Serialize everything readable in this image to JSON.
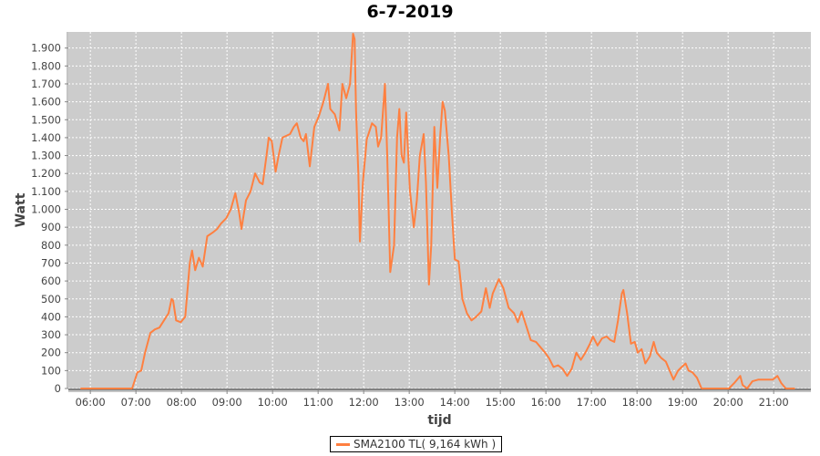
{
  "chart_data": {
    "type": "line",
    "title": "6-7-2019",
    "xlabel": "tijd",
    "ylabel": "Watt",
    "xlim": [
      "05:31",
      "21:49"
    ],
    "ylim": [
      0,
      1990
    ],
    "grid": true,
    "legend_placement": "bottom",
    "x_ticks": [
      "06:00",
      "07:00",
      "08:00",
      "09:00",
      "10:00",
      "11:00",
      "12:00",
      "13:00",
      "14:00",
      "15:00",
      "16:00",
      "17:00",
      "18:00",
      "19:00",
      "20:00",
      "21:00"
    ],
    "y_ticks": [
      0,
      100,
      200,
      300,
      400,
      500,
      600,
      700,
      800,
      900,
      1000,
      1100,
      1200,
      1300,
      1400,
      1500,
      1600,
      1700,
      1800,
      1900
    ],
    "y_tick_labels": [
      "0",
      "100",
      "200",
      "300",
      "400",
      "500",
      "600",
      "700",
      "800",
      "900",
      "1.000",
      "1.100",
      "1.200",
      "1.300",
      "1.400",
      "1.500",
      "1.600",
      "1.700",
      "1.800",
      "1.900"
    ],
    "series": [
      {
        "name": "SMA2100 TL( 9,164 kWh )",
        "color": "#ff8040",
        "x": [
          "05:47",
          "06:55",
          "07:02",
          "07:07",
          "07:12",
          "07:19",
          "07:25",
          "07:31",
          "07:37",
          "07:43",
          "07:47",
          "07:49",
          "07:53",
          "07:59",
          "08:05",
          "08:11",
          "08:14",
          "08:18",
          "08:23",
          "08:28",
          "08:34",
          "08:41",
          "08:47",
          "08:52",
          "08:59",
          "09:05",
          "09:11",
          "09:16",
          "09:19",
          "09:25",
          "09:31",
          "09:37",
          "09:43",
          "09:47",
          "09:52",
          "09:55",
          "09:59",
          "10:04",
          "10:08",
          "10:13",
          "10:23",
          "10:28",
          "10:32",
          "10:37",
          "10:41",
          "10:44",
          "10:49",
          "10:55",
          "11:01",
          "11:07",
          "11:13",
          "11:16",
          "11:22",
          "11:28",
          "11:32",
          "11:37",
          "11:42",
          "11:46",
          "11:48",
          "11:50",
          "11:53",
          "11:55",
          "11:59",
          "12:04",
          "12:11",
          "12:16",
          "12:19",
          "12:23",
          "12:28",
          "12:31",
          "12:35",
          "12:40",
          "12:44",
          "12:47",
          "12:50",
          "12:53",
          "12:56",
          "13:01",
          "13:06",
          "13:10",
          "13:14",
          "13:19",
          "13:22",
          "13:26",
          "13:29",
          "13:33",
          "13:37",
          "13:41",
          "13:44",
          "13:47",
          "13:52",
          "13:56",
          "14:00",
          "14:05",
          "14:10",
          "14:16",
          "14:22",
          "14:28",
          "14:35",
          "14:41",
          "14:46",
          "14:50",
          "14:58",
          "15:04",
          "15:11",
          "15:18",
          "15:23",
          "15:28",
          "15:34",
          "15:40",
          "15:47",
          "15:53",
          "15:59",
          "16:04",
          "16:10",
          "16:16",
          "16:22",
          "16:28",
          "16:34",
          "16:40",
          "16:46",
          "16:52",
          "16:58",
          "17:02",
          "17:08",
          "17:14",
          "17:20",
          "17:25",
          "17:30",
          "17:35",
          "17:40",
          "17:42",
          "17:47",
          "17:52",
          "17:57",
          "18:01",
          "18:06",
          "18:11",
          "18:17",
          "18:22",
          "18:26",
          "18:32",
          "18:38",
          "18:43",
          "18:48",
          "18:54",
          "18:59",
          "19:04",
          "19:08",
          "19:13",
          "19:19",
          "19:25",
          "20:01",
          "20:08",
          "20:16",
          "20:19",
          "20:25",
          "20:32",
          "20:40",
          "20:49",
          "20:59",
          "21:05",
          "21:10",
          "21:16",
          "21:28"
        ],
        "y": [
          0,
          0,
          90,
          100,
          200,
          310,
          330,
          340,
          380,
          420,
          500,
          490,
          380,
          370,
          400,
          700,
          770,
          660,
          730,
          680,
          850,
          870,
          890,
          920,
          950,
          1000,
          1090,
          980,
          890,
          1050,
          1100,
          1200,
          1150,
          1140,
          1300,
          1400,
          1380,
          1210,
          1300,
          1400,
          1420,
          1460,
          1480,
          1400,
          1380,
          1420,
          1240,
          1460,
          1520,
          1600,
          1700,
          1560,
          1530,
          1440,
          1700,
          1620,
          1700,
          1980,
          1950,
          1550,
          1200,
          820,
          1150,
          1390,
          1480,
          1460,
          1350,
          1400,
          1700,
          1300,
          650,
          800,
          1400,
          1560,
          1300,
          1260,
          1540,
          1100,
          900,
          1050,
          1300,
          1420,
          1150,
          580,
          800,
          1460,
          1120,
          1420,
          1600,
          1550,
          1300,
          1000,
          720,
          710,
          500,
          420,
          380,
          400,
          430,
          560,
          450,
          530,
          610,
          560,
          450,
          420,
          370,
          430,
          350,
          270,
          260,
          230,
          200,
          170,
          120,
          130,
          110,
          70,
          110,
          200,
          160,
          200,
          250,
          290,
          240,
          280,
          290,
          270,
          260,
          380,
          530,
          550,
          420,
          250,
          260,
          200,
          220,
          140,
          180,
          260,
          200,
          170,
          150,
          100,
          50,
          100,
          120,
          140,
          100,
          90,
          60,
          0,
          0,
          30,
          70,
          20,
          0,
          40,
          50,
          50,
          50,
          70,
          30,
          0,
          0
        ]
      }
    ]
  }
}
